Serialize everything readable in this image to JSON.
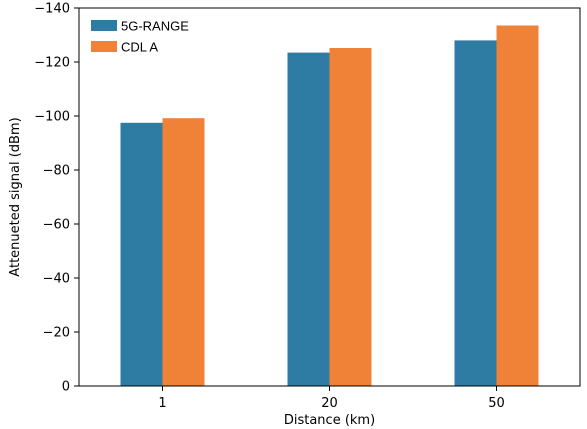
{
  "chart_data": {
    "type": "bar",
    "categories": [
      "1",
      "20",
      "50"
    ],
    "series": [
      {
        "name": "5G-RANGE",
        "values": [
          -97.5,
          -123.5,
          -128
        ],
        "color": "#2e7ca3"
      },
      {
        "name": "CDL A",
        "values": [
          -99.2,
          -125.2,
          -133.5
        ],
        "color": "#f08237"
      }
    ],
    "xlabel": "Distance (km)",
    "ylabel": "Attenueted signal (dBm)",
    "ylim": [
      0,
      -140
    ],
    "yticks": [
      "0",
      "−20",
      "−40",
      "−60",
      "−80",
      "−100",
      "−120",
      "−140"
    ],
    "ytick_values": [
      0,
      -20,
      -40,
      -60,
      -80,
      -100,
      -120,
      -140
    ],
    "grid": false,
    "legend_position": "top-left"
  }
}
